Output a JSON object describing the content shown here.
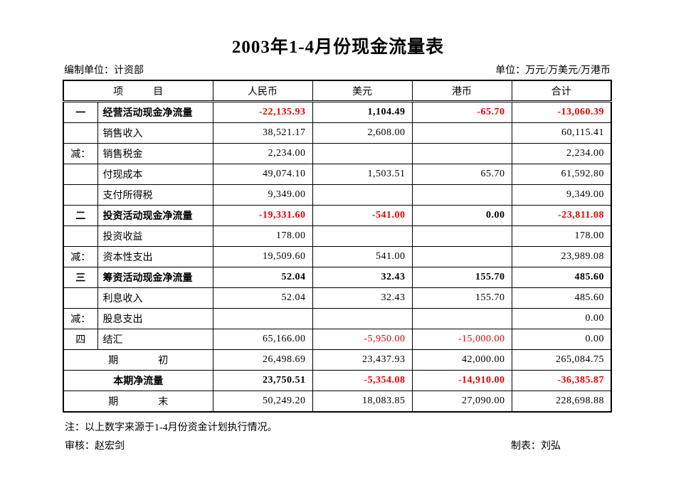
{
  "page": {
    "title": "2003年1-4月份现金流量表",
    "prepared_by": "编制单位：计资部",
    "unit": "单位：万元/万美元/万港币",
    "note": "注：以上数字来源于1-4月份资金计划执行情况。",
    "reviewer": "审核：赵宏剑",
    "preparer": "制表：刘弘"
  },
  "colors": {
    "negative_value": "#e60000",
    "text": "#000000",
    "border": "#000000",
    "background": "#ffffff"
  },
  "table": {
    "item_header": "项　　　目",
    "column_headers": [
      "人民币",
      "美元",
      "港币",
      "合计"
    ],
    "rows": [
      {
        "marker": "一",
        "label": "经营活动现金净流量",
        "bold": true,
        "merged": false,
        "values": [
          "-22,135.93",
          "1,104.49",
          "-65.70",
          "-13,060.39"
        ],
        "negative": [
          true,
          false,
          true,
          true
        ]
      },
      {
        "marker": "",
        "label": "销售收入",
        "bold": false,
        "merged": false,
        "values": [
          "38,521.17",
          "2,608.00",
          "",
          "60,115.41"
        ],
        "negative": [
          false,
          false,
          false,
          false
        ]
      },
      {
        "marker": "减：",
        "label": "销售税金",
        "bold": false,
        "merged": false,
        "values": [
          "2,234.00",
          "",
          "",
          "2,234.00"
        ],
        "negative": [
          false,
          false,
          false,
          false
        ]
      },
      {
        "marker": "",
        "label": "付现成本",
        "bold": false,
        "merged": false,
        "values": [
          "49,074.10",
          "1,503.51",
          "65.70",
          "61,592.80"
        ],
        "negative": [
          false,
          false,
          false,
          false
        ]
      },
      {
        "marker": "",
        "label": "支付所得税",
        "bold": false,
        "merged": false,
        "values": [
          "9,349.00",
          "",
          "",
          "9,349.00"
        ],
        "negative": [
          false,
          false,
          false,
          false
        ]
      },
      {
        "marker": "二",
        "label": "投资活动现金净流量",
        "bold": true,
        "merged": false,
        "values": [
          "-19,331.60",
          "-541.00",
          "0.00",
          "-23,811.08"
        ],
        "negative": [
          true,
          true,
          false,
          true
        ]
      },
      {
        "marker": "",
        "label": "投资收益",
        "bold": false,
        "merged": false,
        "values": [
          "178.00",
          "",
          "",
          "178.00"
        ],
        "negative": [
          false,
          false,
          false,
          false
        ]
      },
      {
        "marker": "减：",
        "label": "资本性支出",
        "bold": false,
        "merged": false,
        "values": [
          "19,509.60",
          "541.00",
          "",
          "23,989.08"
        ],
        "negative": [
          false,
          false,
          false,
          false
        ]
      },
      {
        "marker": "三",
        "label": "筹资活动现金净流量",
        "bold": true,
        "merged": false,
        "values": [
          "52.04",
          "32.43",
          "155.70",
          "485.60"
        ],
        "negative": [
          false,
          false,
          false,
          false
        ]
      },
      {
        "marker": "",
        "label": "利息收入",
        "bold": false,
        "merged": false,
        "values": [
          "52.04",
          "32.43",
          "155.70",
          "485.60"
        ],
        "negative": [
          false,
          false,
          false,
          false
        ]
      },
      {
        "marker": "减：",
        "label": "股息支出",
        "bold": false,
        "merged": false,
        "values": [
          "",
          "",
          "",
          "0.00"
        ],
        "negative": [
          false,
          false,
          false,
          false
        ]
      },
      {
        "marker": "四",
        "label": "结汇",
        "bold": false,
        "merged": false,
        "values": [
          "65,166.00",
          "-5,950.00",
          "-15,000.00",
          "0.00"
        ],
        "negative": [
          false,
          true,
          true,
          false
        ]
      },
      {
        "marker": "",
        "label": "期　　　　初",
        "bold": false,
        "merged": true,
        "values": [
          "26,498.69",
          "23,437.93",
          "42,000.00",
          "265,084.75"
        ],
        "negative": [
          false,
          false,
          false,
          false
        ]
      },
      {
        "marker": "",
        "label": "本期净流量",
        "bold": true,
        "merged": true,
        "values": [
          "23,750.51",
          "-5,354.08",
          "-14,910.00",
          "-36,385.87"
        ],
        "negative": [
          false,
          true,
          true,
          true
        ]
      },
      {
        "marker": "",
        "label": "期　　　　末",
        "bold": false,
        "merged": true,
        "values": [
          "50,249.20",
          "18,083.85",
          "27,090.00",
          "228,698.88"
        ],
        "negative": [
          false,
          false,
          false,
          false
        ]
      }
    ]
  }
}
